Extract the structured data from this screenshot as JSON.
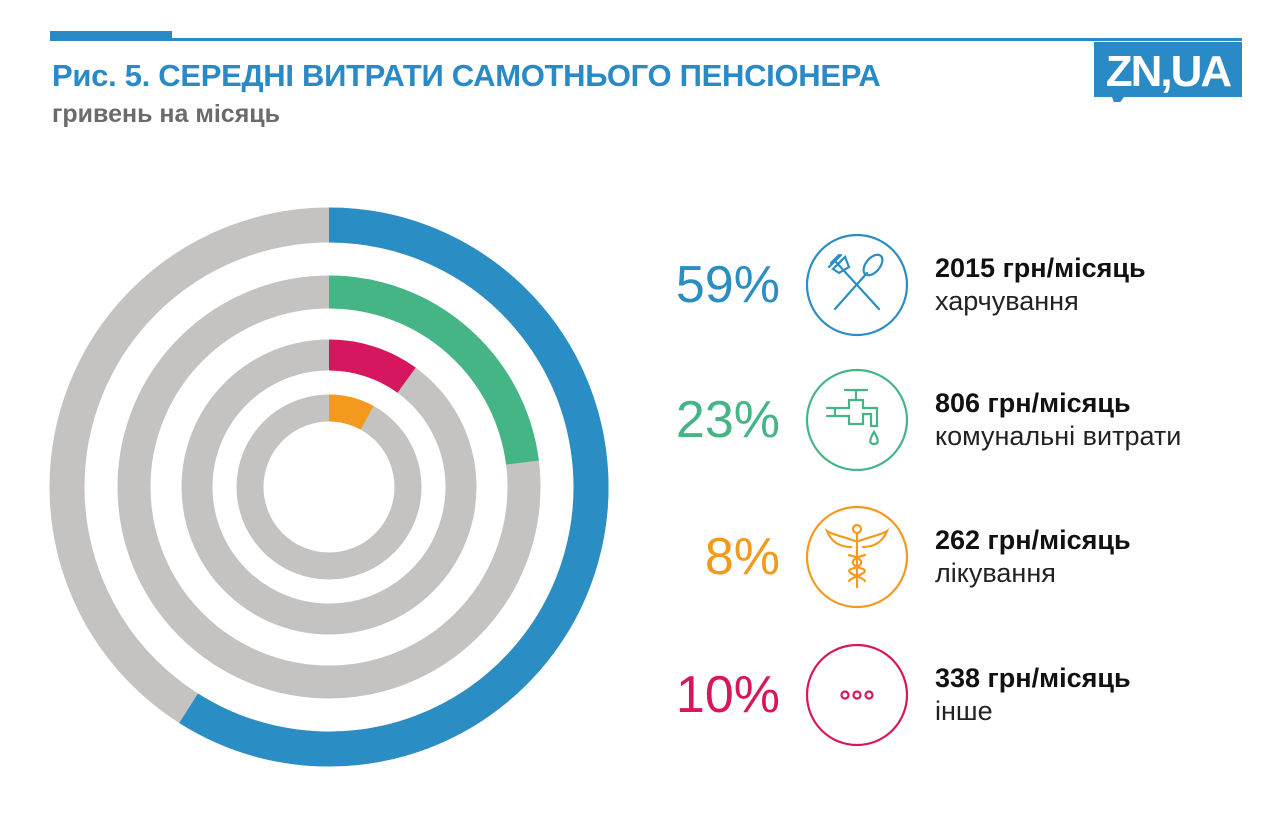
{
  "header": {
    "title": "Рис. 5. СЕРЕДНІ ВИТРАТИ САМОТНЬОГО ПЕНСІОНЕРА",
    "subtitle": "гривень на місяць",
    "logo_text": "ZN,UA",
    "accent": "#2a8ac5"
  },
  "chart_data": {
    "type": "radial-bar",
    "title": "Рис. 5. СЕРЕДНІ ВИТРАТИ САМОТНЬОГО ПЕНСІОНЕРА",
    "subtitle": "гривень на місяць",
    "track_color": "#c4c3c2",
    "series": [
      {
        "name": "харчування",
        "percent": 59,
        "percent_label": "59%",
        "amount_label": "2015 грн/місяць",
        "color": "#2a8ec4",
        "icon": "fork-spoon-icon"
      },
      {
        "name": "комунальні витрати",
        "percent": 23,
        "percent_label": "23%",
        "amount_label": "806 грн/місяць",
        "color": "#45b586",
        "icon": "water-tap-icon"
      },
      {
        "name": "інше",
        "percent": 10,
        "percent_label": "10%",
        "amount_label": "338 грн/місяць",
        "color": "#d6165e",
        "icon": "ellipsis-icon"
      },
      {
        "name": "лікування",
        "percent": 8,
        "percent_label": "8%",
        "amount_label": "262 грн/місяць",
        "color": "#f39a1e",
        "icon": "caduceus-icon"
      }
    ]
  },
  "legend_order": [
    0,
    1,
    3,
    2
  ]
}
